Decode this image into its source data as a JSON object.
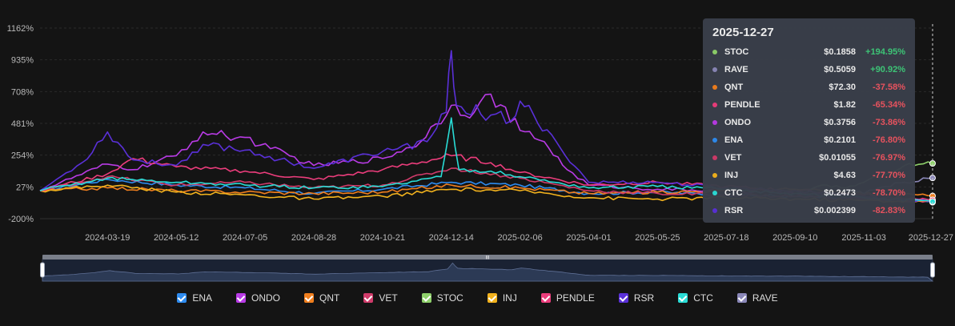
{
  "chart_data": {
    "type": "line",
    "y_unit": "%",
    "ylim": [
      -200,
      1162
    ],
    "y_ticks": [
      "1162%",
      "935%",
      "708%",
      "481%",
      "254%",
      "27%",
      "-200%"
    ],
    "x_start": "2024-01-26",
    "x_end": "2025-12-27",
    "x_ticks": [
      "2024-03-19",
      "2024-05-12",
      "2024-07-05",
      "2024-08-28",
      "2024-10-21",
      "2024-12-14",
      "2025-02-06",
      "2025-04-01",
      "2025-05-25",
      "2025-07-18",
      "2025-09-10",
      "2025-11-03",
      "2025-12-27"
    ],
    "grid": true,
    "series": [
      {
        "name": "ENA",
        "color": "#2e8cf0",
        "points": [
          [
            "2024-01-26",
            0
          ],
          [
            "2024-03-19",
            80
          ],
          [
            "2024-05-12",
            40
          ],
          [
            "2024-07-05",
            20
          ],
          [
            "2024-08-28",
            -20
          ],
          [
            "2024-10-21",
            10
          ],
          [
            "2024-12-14",
            60
          ],
          [
            "2025-02-06",
            40
          ],
          [
            "2025-04-01",
            -20
          ],
          [
            "2025-05-25",
            -10
          ],
          [
            "2025-07-18",
            -30
          ],
          [
            "2025-09-10",
            -40
          ],
          [
            "2025-11-03",
            -60
          ],
          [
            "2025-12-27",
            -76.8
          ]
        ]
      },
      {
        "name": "ONDO",
        "color": "#b93be6",
        "points": [
          [
            "2024-01-26",
            0
          ],
          [
            "2024-03-19",
            190
          ],
          [
            "2024-04-08",
            150
          ],
          [
            "2024-05-12",
            250
          ],
          [
            "2024-06-02",
            420
          ],
          [
            "2024-06-20",
            390
          ],
          [
            "2024-07-05",
            380
          ],
          [
            "2024-07-25",
            300
          ],
          [
            "2024-08-28",
            180
          ],
          [
            "2024-10-21",
            230
          ],
          [
            "2024-11-20",
            350
          ],
          [
            "2024-12-14",
            610
          ],
          [
            "2025-01-01",
            560
          ],
          [
            "2025-01-14",
            690
          ],
          [
            "2025-02-06",
            430
          ],
          [
            "2025-02-25",
            350
          ],
          [
            "2025-03-15",
            150
          ],
          [
            "2025-04-01",
            40
          ],
          [
            "2025-05-25",
            10
          ],
          [
            "2025-07-18",
            0
          ],
          [
            "2025-09-10",
            -20
          ],
          [
            "2025-11-03",
            -50
          ],
          [
            "2025-12-27",
            -73.86
          ]
        ]
      },
      {
        "name": "QNT",
        "color": "#f07f1e",
        "points": [
          [
            "2024-01-26",
            0
          ],
          [
            "2024-03-19",
            20
          ],
          [
            "2024-05-12",
            0
          ],
          [
            "2024-07-05",
            -10
          ],
          [
            "2024-08-28",
            -20
          ],
          [
            "2024-10-21",
            -10
          ],
          [
            "2024-12-14",
            40
          ],
          [
            "2025-02-06",
            20
          ],
          [
            "2025-04-01",
            -20
          ],
          [
            "2025-05-25",
            -10
          ],
          [
            "2025-07-18",
            0
          ],
          [
            "2025-09-10",
            10
          ],
          [
            "2025-11-03",
            -20
          ],
          [
            "2025-12-27",
            -37.58
          ]
        ]
      },
      {
        "name": "VET",
        "color": "#d03b6a",
        "points": [
          [
            "2024-01-26",
            0
          ],
          [
            "2024-03-19",
            100
          ],
          [
            "2024-05-12",
            40
          ],
          [
            "2024-07-05",
            60
          ],
          [
            "2024-08-28",
            20
          ],
          [
            "2024-10-21",
            40
          ],
          [
            "2024-12-14",
            160
          ],
          [
            "2025-02-06",
            90
          ],
          [
            "2025-04-01",
            0
          ],
          [
            "2025-05-25",
            -20
          ],
          [
            "2025-07-18",
            -30
          ],
          [
            "2025-09-10",
            -40
          ],
          [
            "2025-11-03",
            -60
          ],
          [
            "2025-12-27",
            -76.97
          ]
        ]
      },
      {
        "name": "STOC",
        "color": "#8ed06a",
        "points": [
          [
            "2025-09-20",
            0
          ],
          [
            "2025-10-05",
            40
          ],
          [
            "2025-10-20",
            20
          ],
          [
            "2025-11-03",
            60
          ],
          [
            "2025-11-20",
            120
          ],
          [
            "2025-12-05",
            180
          ],
          [
            "2025-12-27",
            194.95
          ]
        ]
      },
      {
        "name": "INJ",
        "color": "#f2b21d",
        "points": [
          [
            "2024-01-26",
            0
          ],
          [
            "2024-03-19",
            40
          ],
          [
            "2024-05-12",
            -10
          ],
          [
            "2024-07-05",
            -30
          ],
          [
            "2024-08-28",
            -60
          ],
          [
            "2024-10-21",
            -40
          ],
          [
            "2024-12-14",
            10
          ],
          [
            "2025-02-06",
            0
          ],
          [
            "2025-04-01",
            -50
          ],
          [
            "2025-05-25",
            -60
          ],
          [
            "2025-07-18",
            -50
          ],
          [
            "2025-09-10",
            -60
          ],
          [
            "2025-11-03",
            -70
          ],
          [
            "2025-12-27",
            -77.7
          ]
        ]
      },
      {
        "name": "PENDLE",
        "color": "#ec3d7c",
        "points": [
          [
            "2024-01-26",
            0
          ],
          [
            "2024-03-19",
            120
          ],
          [
            "2024-04-08",
            230
          ],
          [
            "2024-05-12",
            170
          ],
          [
            "2024-07-05",
            140
          ],
          [
            "2024-08-28",
            80
          ],
          [
            "2024-10-21",
            150
          ],
          [
            "2024-12-14",
            250
          ],
          [
            "2025-01-14",
            200
          ],
          [
            "2025-02-06",
            130
          ],
          [
            "2025-04-01",
            40
          ],
          [
            "2025-05-25",
            60
          ],
          [
            "2025-07-18",
            30
          ],
          [
            "2025-09-10",
            0
          ],
          [
            "2025-11-03",
            -30
          ],
          [
            "2025-12-27",
            -65.34
          ]
        ]
      },
      {
        "name": "RSR",
        "color": "#5a30d8",
        "points": [
          [
            "2024-01-26",
            0
          ],
          [
            "2024-02-28",
            200
          ],
          [
            "2024-03-19",
            420
          ],
          [
            "2024-04-08",
            220
          ],
          [
            "2024-05-12",
            180
          ],
          [
            "2024-06-02",
            330
          ],
          [
            "2024-07-05",
            290
          ],
          [
            "2024-08-28",
            160
          ],
          [
            "2024-10-21",
            280
          ],
          [
            "2024-11-25",
            350
          ],
          [
            "2024-12-10",
            560
          ],
          [
            "2024-12-14",
            1000
          ],
          [
            "2024-12-18",
            610
          ],
          [
            "2025-01-14",
            540
          ],
          [
            "2025-01-30",
            500
          ],
          [
            "2025-02-06",
            640
          ],
          [
            "2025-02-20",
            480
          ],
          [
            "2025-03-10",
            300
          ],
          [
            "2025-04-01",
            60
          ],
          [
            "2025-05-25",
            60
          ],
          [
            "2025-07-18",
            20
          ],
          [
            "2025-09-10",
            0
          ],
          [
            "2025-11-03",
            -40
          ],
          [
            "2025-12-27",
            -82.83
          ]
        ]
      },
      {
        "name": "CTC",
        "color": "#29dcd6",
        "points": [
          [
            "2024-01-26",
            0
          ],
          [
            "2024-03-19",
            90
          ],
          [
            "2024-05-12",
            60
          ],
          [
            "2024-07-05",
            40
          ],
          [
            "2024-08-28",
            20
          ],
          [
            "2024-10-21",
            30
          ],
          [
            "2024-12-06",
            100
          ],
          [
            "2024-12-14",
            520
          ],
          [
            "2024-12-20",
            150
          ],
          [
            "2025-01-14",
            140
          ],
          [
            "2025-02-06",
            100
          ],
          [
            "2025-04-01",
            20
          ],
          [
            "2025-05-25",
            30
          ],
          [
            "2025-07-18",
            10
          ],
          [
            "2025-09-10",
            -20
          ],
          [
            "2025-11-03",
            -50
          ],
          [
            "2025-12-27",
            -78.7
          ]
        ]
      },
      {
        "name": "RAVE",
        "color": "#8a87b8",
        "points": [
          [
            "2025-10-20",
            0
          ],
          [
            "2025-11-03",
            -20
          ],
          [
            "2025-11-20",
            30
          ],
          [
            "2025-12-05",
            60
          ],
          [
            "2025-12-27",
            90.92
          ]
        ]
      }
    ]
  },
  "tooltip": {
    "date": "2025-12-27",
    "rows": [
      {
        "name": "STOC",
        "price": "$0.1858",
        "change": "+194.95%",
        "dir": "up",
        "color": "#8ed06a"
      },
      {
        "name": "RAVE",
        "price": "$0.5059",
        "change": "+90.92%",
        "dir": "up",
        "color": "#8a87b8"
      },
      {
        "name": "QNT",
        "price": "$72.30",
        "change": "-37.58%",
        "dir": "down",
        "color": "#f07f1e"
      },
      {
        "name": "PENDLE",
        "price": "$1.82",
        "change": "-65.34%",
        "dir": "down",
        "color": "#ec3d7c"
      },
      {
        "name": "ONDO",
        "price": "$0.3756",
        "change": "-73.86%",
        "dir": "down",
        "color": "#b93be6"
      },
      {
        "name": "ENA",
        "price": "$0.2101",
        "change": "-76.80%",
        "dir": "down",
        "color": "#2e8cf0"
      },
      {
        "name": "VET",
        "price": "$0.01055",
        "change": "-76.97%",
        "dir": "down",
        "color": "#d03b6a"
      },
      {
        "name": "INJ",
        "price": "$4.63",
        "change": "-77.70%",
        "dir": "down",
        "color": "#f2b21d"
      },
      {
        "name": "CTC",
        "price": "$0.2473",
        "change": "-78.70%",
        "dir": "down",
        "color": "#29dcd6"
      },
      {
        "name": "RSR",
        "price": "$0.002399",
        "change": "-82.83%",
        "dir": "down",
        "color": "#5a30d8"
      }
    ]
  },
  "legend": [
    {
      "name": "ENA",
      "color": "#2e8cf0"
    },
    {
      "name": "ONDO",
      "color": "#b93be6"
    },
    {
      "name": "QNT",
      "color": "#f07f1e"
    },
    {
      "name": "VET",
      "color": "#d03b6a"
    },
    {
      "name": "STOC",
      "color": "#8ed06a"
    },
    {
      "name": "INJ",
      "color": "#f2b21d"
    },
    {
      "name": "PENDLE",
      "color": "#ec3d7c"
    },
    {
      "name": "RSR",
      "color": "#5a30d8"
    },
    {
      "name": "CTC",
      "color": "#29dcd6"
    },
    {
      "name": "RAVE",
      "color": "#8a87b8"
    }
  ],
  "zoom": {
    "start_fraction": 0.0,
    "end_fraction": 1.0,
    "handle_glyph": "III"
  }
}
